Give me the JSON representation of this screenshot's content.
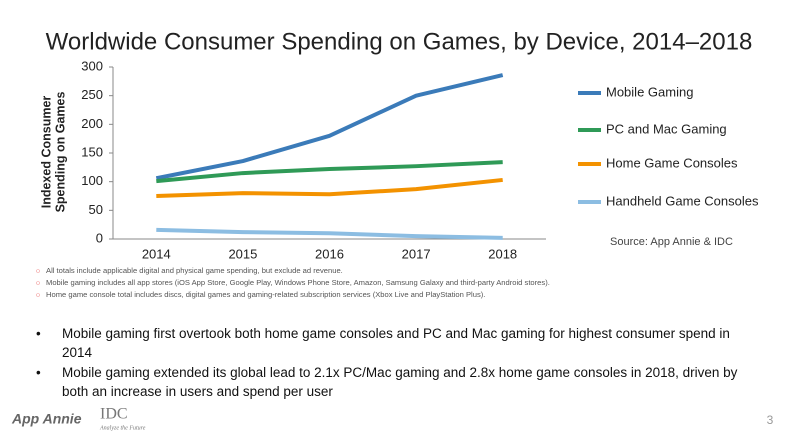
{
  "chart_data": {
    "type": "line",
    "title": "Worldwide Consumer Spending on Games, by Device, 2014–2018",
    "ylabel": [
      "Indexed Consumer",
      "Spending on Games"
    ],
    "categories": [
      "2014",
      "2015",
      "2016",
      "2017",
      "2018"
    ],
    "series": [
      {
        "name": "Mobile Gaming",
        "color": "#3b7bb9",
        "values": [
          106,
          136,
          180,
          250,
          286
        ]
      },
      {
        "name": "PC and Mac Gaming",
        "color": "#2f9a57",
        "values": [
          101,
          115,
          122,
          127,
          134
        ]
      },
      {
        "name": "Home Game Consoles",
        "color": "#f39200",
        "values": [
          75,
          80,
          78,
          87,
          103
        ]
      },
      {
        "name": "Handheld Game Consoles",
        "color": "#8cbde2",
        "values": [
          16,
          12,
          10,
          5,
          2
        ]
      }
    ],
    "ylim": [
      0,
      300
    ],
    "yticks": [
      0,
      50,
      100,
      150,
      200,
      250,
      300
    ],
    "grid": false,
    "legend": "right",
    "source": "Source: App Annie & IDC"
  },
  "footnotes": [
    "All totals include applicable digital and physical game spending, but exclude ad revenue.",
    "Mobile gaming includes all app stores (iOS App Store, Google Play, Windows Phone Store, Amazon, Samsung Galaxy and third-party Android stores).",
    "Home game console total includes discs, digital games and gaming-related subscription services (Xbox Live and PlayStation Plus)."
  ],
  "bullets": [
    "Mobile gaming first overtook both home game consoles and PC and Mac gaming for highest consumer spend in 2014",
    "Mobile gaming extended its global lead to 2.1x PC/Mac gaming and 2.8x home game consoles in 2018, driven by both an increase in users and spend per user"
  ],
  "footer": {
    "logo1": "App Annie",
    "logo2": "IDC",
    "logo2_tagline": "Analyze the Future",
    "page": "3"
  }
}
